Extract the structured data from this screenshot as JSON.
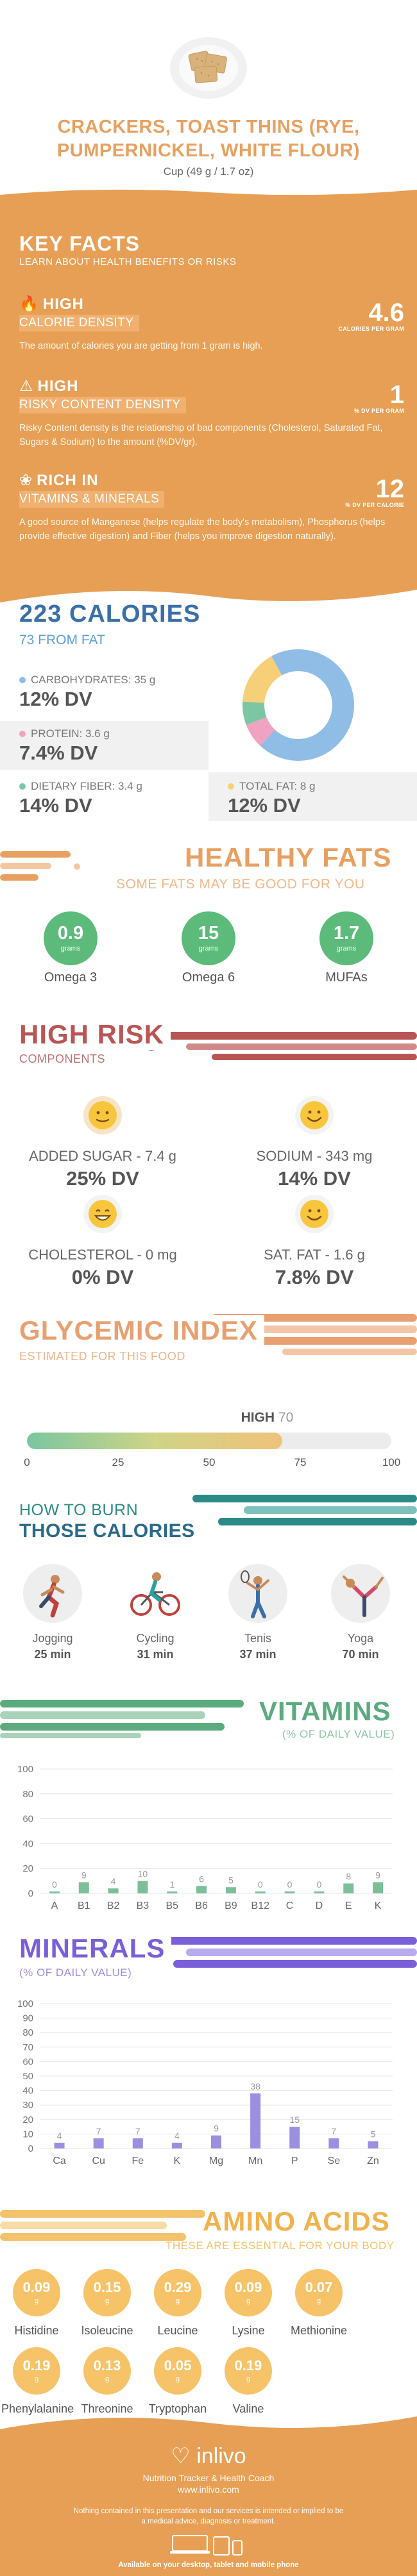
{
  "header": {
    "title": "CRACKERS, TOAST THINS (RYE, PUMPERNICKEL, WHITE FLOUR)",
    "serving": "Cup (49 g / 1.7 oz)"
  },
  "key_facts": {
    "title": "KEY FACTS",
    "subtitle": "LEARN ABOUT HEALTH BENEFITS OR RISKS",
    "items": [
      {
        "level": "HIGH",
        "category": "CALORIE DENSITY",
        "value": "4.6",
        "unit": "CALORIES PER GRAM",
        "description": "The amount of calories you are getting from 1 gram is high.",
        "icon": "fire-icon"
      },
      {
        "level": "HIGH",
        "category": "RISKY CONTENT DENSITY",
        "value": "1",
        "unit": "% DV PER GRAM",
        "description": "Risky Content density is the relationship of bad components (Cholesterol, Saturated Fat, Sugars & Sodium) to the amount (%DV/gr).",
        "icon": "warning-icon"
      },
      {
        "level": "RICH  IN",
        "category": "VITAMINS & MINERALS",
        "value": "12",
        "unit": "% DV PER CALORIE",
        "description": "A good source of Manganese (helps regulate the body's metabolism), Phosphorus (helps provide effective digestion) and Fiber (helps you improve digestion naturally).",
        "icon": "leaf-icon"
      }
    ]
  },
  "calories": {
    "title": "223 CALORIES",
    "from_fat": "73 FROM FAT",
    "macros": [
      {
        "label": "CARBOHYDRATES: 35 g",
        "dv": "12% DV",
        "color": "#8fbde6"
      },
      {
        "label": "PROTEIN: 3.6 g",
        "dv": "7.4% DV",
        "color": "#f0a3c0"
      },
      {
        "label": "DIETARY FIBER: 3.4 g",
        "dv": "14% DV",
        "color": "#7cc6a4"
      },
      {
        "label": "TOTAL FAT: 8 g",
        "dv": "12% DV",
        "color": "#f6cf78"
      }
    ],
    "pie": [
      {
        "name": "CARBOHYDRATES",
        "value": 35,
        "color": "#8fbde6"
      },
      {
        "name": "PROTEIN",
        "value": 3.6,
        "color": "#f0a3c0"
      },
      {
        "name": "DIETARY FIBER",
        "value": 3.4,
        "color": "#7cc6a4"
      },
      {
        "name": "TOTAL FAT",
        "value": 8,
        "color": "#f6cf78"
      }
    ]
  },
  "healthy_fats": {
    "title": "HEALTHY FATS",
    "subtitle": "SOME FATS MAY BE GOOD FOR YOU",
    "items": [
      {
        "value": "0.9",
        "unit": "grams",
        "name": "Omega 3"
      },
      {
        "value": "15",
        "unit": "grams",
        "name": "Omega 6"
      },
      {
        "value": "1.7",
        "unit": "grams",
        "name": "MUFAs"
      }
    ]
  },
  "high_risk": {
    "title": "HIGH RISK",
    "subtitle": "COMPONENTS",
    "items": [
      {
        "label": "ADDED SUGAR - 7.4 g",
        "dv": "25% DV",
        "face": "neutral"
      },
      {
        "label": "SODIUM - 343 mg",
        "dv": "14% DV",
        "face": "smile"
      },
      {
        "label": "CHOLESTEROL - 0 mg",
        "dv": "0% DV",
        "face": "grin"
      },
      {
        "label": "SAT. FAT - 1.6 g",
        "dv": "7.8% DV",
        "face": "smile"
      }
    ]
  },
  "glycemic": {
    "title": "GLYCEMIC INDEX",
    "subtitle": "ESTIMATED FOR THIS FOOD",
    "level": "HIGH",
    "value": 70,
    "ticks": [
      "0",
      "25",
      "50",
      "75",
      "100"
    ]
  },
  "burn": {
    "title_1": "HOW TO BURN",
    "title_2": "THOSE CALORIES",
    "activities": [
      {
        "name": "Jogging",
        "time": "25 min",
        "icon": "jogging-icon"
      },
      {
        "name": "Cycling",
        "time": "31 min",
        "icon": "cycling-icon"
      },
      {
        "name": "Tenis",
        "time": "37 min",
        "icon": "tennis-icon"
      },
      {
        "name": "Yoga",
        "time": "70 min",
        "icon": "yoga-icon"
      }
    ]
  },
  "vitamins": {
    "title": "VITAMINS",
    "subtitle": "(% OF DAILY VALUE)"
  },
  "minerals": {
    "title": "MINERALS",
    "subtitle": "(% OF DAILY VALUE)"
  },
  "chart_data": [
    {
      "type": "bar",
      "title": "VITAMINS",
      "subtitle": "(% OF DAILY VALUE)",
      "categories": [
        "A",
        "B1",
        "B2",
        "B3",
        "B5",
        "B6",
        "B9",
        "B12",
        "C",
        "D",
        "E",
        "K"
      ],
      "values": [
        0,
        9,
        4,
        10,
        1,
        6,
        5,
        0,
        0,
        0,
        8,
        9
      ],
      "labels": [
        "0",
        "9",
        "4",
        "10",
        "1",
        "6",
        "5",
        "0",
        "0",
        "0",
        "8",
        "9"
      ],
      "yticks": [
        "0",
        "20",
        "40",
        "60",
        "80",
        "100"
      ],
      "ylim": [
        0,
        100
      ],
      "color": "#7cc09a"
    },
    {
      "type": "bar",
      "title": "MINERALS",
      "subtitle": "(% OF DAILY VALUE)",
      "categories": [
        "Ca",
        "Cu",
        "Fe",
        "K",
        "Mg",
        "Mn",
        "P",
        "Se",
        "Zn"
      ],
      "values": [
        4,
        7,
        7,
        4,
        9,
        38,
        15,
        7,
        5
      ],
      "labels": [
        "4",
        "7",
        "7",
        "4",
        "9",
        "38",
        "15",
        "7",
        "5"
      ],
      "yticks": [
        "0",
        "10",
        "20",
        "30",
        "40",
        "50",
        "60",
        "70",
        "80",
        "90",
        "100"
      ],
      "ylim": [
        0,
        100
      ],
      "color": "#9a8fe0"
    }
  ],
  "amino": {
    "title": "AMINO ACIDS",
    "subtitle": "THESE ARE ESSENTIAL FOR YOUR BODY",
    "items": [
      {
        "value": "0.09",
        "unit": "g",
        "name": "Histidine"
      },
      {
        "value": "0.15",
        "unit": "g",
        "name": "Isoleucine"
      },
      {
        "value": "0.29",
        "unit": "g",
        "name": "Leucine"
      },
      {
        "value": "0.09",
        "unit": "g",
        "name": "Lysine"
      },
      {
        "value": "0.07",
        "unit": "g",
        "name": "Methionine"
      },
      {
        "value": "0.19",
        "unit": "g",
        "name": "Phenylalanine"
      },
      {
        "value": "0.13",
        "unit": "g",
        "name": "Threonine"
      },
      {
        "value": "0.05",
        "unit": "g",
        "name": "Tryptophan"
      },
      {
        "value": "0.19",
        "unit": "g",
        "name": "Valine"
      }
    ]
  },
  "footer": {
    "brand": "inlivo",
    "tagline": "Nutrition Tracker & Health Coach",
    "website": "www.inlivo.com",
    "disclaimer": "Nothing contained in this presentation and our services is intended or implied to be a medical advice, diagnosis or treatment.",
    "availability": "Available on your desktop, tablet and mobile phone"
  },
  "colors": {
    "orange": "#e79f55",
    "blue": "#3a6fa8",
    "green": "#6bbf8a",
    "red": "#b85555",
    "teal": "#2a8a86",
    "purple": "#7a5fd8",
    "yellow": "#f3c26a"
  }
}
